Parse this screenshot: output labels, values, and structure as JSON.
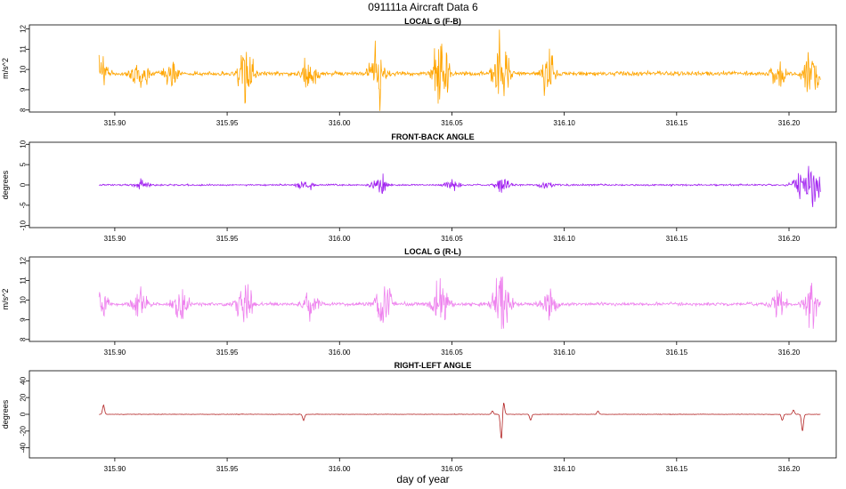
{
  "figure": {
    "title": "091111a   Aircraft Data 6",
    "xlabel": "day of year"
  },
  "chart_data": [
    {
      "type": "line",
      "title": "LOCAL G (F-B)",
      "ylabel": "m/s^2",
      "color": "#FFA500",
      "xlim": [
        315.862,
        316.221
      ],
      "ylim": [
        7.9,
        12.2
      ],
      "xticks": [
        "315.90",
        "315.95",
        "316.00",
        "316.05",
        "316.10",
        "316.15",
        "316.20"
      ],
      "yticks": [
        "8",
        "9",
        "10",
        "11",
        "12"
      ],
      "series": [
        {
          "baseline": 9.8,
          "noise": 0.15,
          "x_range": [
            315.893,
            316.214
          ],
          "bursts": [
            {
              "x": 315.893,
              "amp": 1.0
            },
            {
              "x": 315.911,
              "amp": 1.0
            },
            {
              "x": 315.925,
              "amp": 0.7
            },
            {
              "x": 315.958,
              "amp": 1.4
            },
            {
              "x": 315.987,
              "amp": 1.1
            },
            {
              "x": 316.017,
              "amp": 1.4
            },
            {
              "x": 316.045,
              "amp": 1.6
            },
            {
              "x": 316.072,
              "amp": 1.9
            },
            {
              "x": 316.093,
              "amp": 0.9
            },
            {
              "x": 316.195,
              "amp": 0.7
            },
            {
              "x": 316.21,
              "amp": 1.3
            }
          ]
        }
      ]
    },
    {
      "type": "line",
      "title": "FRONT-BACK ANGLE",
      "ylabel": "degrees",
      "color": "#A020F0",
      "xlim": [
        315.862,
        316.221
      ],
      "ylim": [
        -10.5,
        10.5
      ],
      "xticks": [
        "315.90",
        "315.95",
        "316.00",
        "316.05",
        "316.10",
        "316.15",
        "316.20"
      ],
      "yticks": [
        "-10",
        "-5",
        "0",
        "5",
        "10"
      ],
      "series": [
        {
          "baseline": 0,
          "noise": 0.3,
          "x_range": [
            315.893,
            316.214
          ],
          "bursts": [
            {
              "x": 315.912,
              "amp": 1.2
            },
            {
              "x": 315.985,
              "amp": 1.5
            },
            {
              "x": 316.018,
              "amp": 2.5
            },
            {
              "x": 316.05,
              "amp": 1.5
            },
            {
              "x": 316.072,
              "amp": 2.0
            },
            {
              "x": 316.092,
              "amp": 1.0
            },
            {
              "x": 316.205,
              "amp": 3.0
            },
            {
              "x": 316.211,
              "amp": 6.0
            }
          ]
        }
      ]
    },
    {
      "type": "line",
      "title": "LOCAL G (R-L)",
      "ylabel": "m/s^2",
      "color": "#EE82EE",
      "xlim": [
        315.862,
        316.221
      ],
      "ylim": [
        7.9,
        12.2
      ],
      "xticks": [
        "315.90",
        "315.95",
        "316.00",
        "316.05",
        "316.10",
        "316.15",
        "316.20"
      ],
      "yticks": [
        "8",
        "9",
        "10",
        "11",
        "12"
      ],
      "series": [
        {
          "baseline": 9.8,
          "noise": 0.12,
          "x_range": [
            315.893,
            316.214
          ],
          "bursts": [
            {
              "x": 315.893,
              "amp": 1.0
            },
            {
              "x": 315.911,
              "amp": 0.8
            },
            {
              "x": 315.929,
              "amp": 0.9
            },
            {
              "x": 315.958,
              "amp": 1.1
            },
            {
              "x": 315.987,
              "amp": 0.8
            },
            {
              "x": 316.02,
              "amp": 1.3
            },
            {
              "x": 316.045,
              "amp": 1.6
            },
            {
              "x": 316.072,
              "amp": 2.0
            },
            {
              "x": 316.093,
              "amp": 0.8
            },
            {
              "x": 316.195,
              "amp": 0.8
            },
            {
              "x": 316.21,
              "amp": 1.2
            }
          ]
        }
      ]
    },
    {
      "type": "line",
      "title": "RIGHT-LEFT ANGLE",
      "ylabel": "degrees",
      "color": "#B22222",
      "xlim": [
        315.862,
        316.221
      ],
      "ylim": [
        -52,
        52
      ],
      "xticks": [
        "315.90",
        "315.95",
        "316.00",
        "316.05",
        "316.10",
        "316.15",
        "316.20"
      ],
      "yticks": [
        "-40",
        "-20",
        "0",
        "20",
        "40"
      ],
      "series": [
        {
          "baseline": 0,
          "noise": 0.4,
          "x_range": [
            315.893,
            316.214
          ],
          "spikes": [
            {
              "x": 315.895,
              "y": 11
            },
            {
              "x": 315.984,
              "y": -7
            },
            {
              "x": 316.068,
              "y": 4
            },
            {
              "x": 316.072,
              "y": -30
            },
            {
              "x": 316.073,
              "y": 15
            },
            {
              "x": 316.085,
              "y": -7
            },
            {
              "x": 316.115,
              "y": 4
            },
            {
              "x": 316.197,
              "y": -7
            },
            {
              "x": 316.202,
              "y": 5
            },
            {
              "x": 316.206,
              "y": -20
            }
          ]
        }
      ]
    }
  ]
}
